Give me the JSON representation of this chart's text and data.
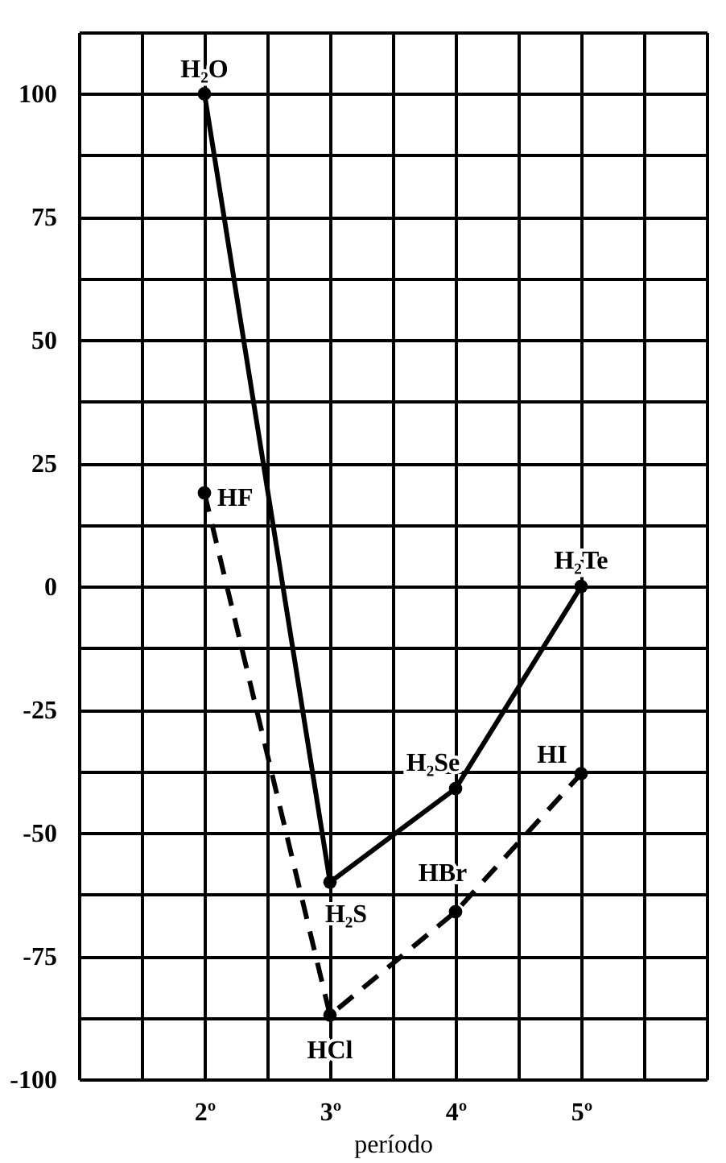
{
  "chart_data": {
    "type": "line",
    "xlabel": "período",
    "x": [
      2,
      3,
      4,
      5
    ],
    "series": [
      {
        "color": "#000000",
        "line_style": "solid",
        "marker": "circle",
        "values": [
          100,
          -60,
          -41,
          0
        ]
      },
      {
        "color": "#000000",
        "line_style": "dashed",
        "marker": "circle",
        "values": [
          19,
          -87,
          -66,
          -38
        ]
      }
    ],
    "xlim": [
      1,
      6
    ],
    "xticks": [
      {
        "value": 1,
        "label": null
      },
      {
        "value": 1.5,
        "label": null
      },
      {
        "value": 2,
        "label": "2º"
      },
      {
        "value": 2.5,
        "label": null
      },
      {
        "value": 3,
        "label": "3º"
      },
      {
        "value": 3.5,
        "label": null
      },
      {
        "value": 4,
        "label": "4º"
      },
      {
        "value": 4.5,
        "label": null
      },
      {
        "value": 5,
        "label": "5º"
      },
      {
        "value": 5.5,
        "label": null
      },
      {
        "value": 6,
        "label": null
      }
    ],
    "ylim": [
      -100,
      112.5
    ],
    "yticks": [
      -100,
      {
        "value": -87.5,
        "label": null
      },
      -75,
      {
        "value": -62.5,
        "label": null
      },
      -50,
      {
        "value": -37.5,
        "label": null
      },
      -25,
      {
        "value": -12.5,
        "label": null
      },
      0,
      {
        "value": 12.5,
        "label": null
      },
      25,
      {
        "value": 37.5,
        "label": null
      },
      50,
      {
        "value": 62.5,
        "label": null
      },
      75,
      {
        "value": 87.5,
        "label": null
      },
      100,
      {
        "value": 112.5,
        "label": null
      }
    ],
    "grid": true,
    "legend": false,
    "annotations": [
      {
        "text": "H₂O",
        "x": 2,
        "y": 100
      },
      {
        "text": "H₂S",
        "x": 3,
        "y": -60
      },
      {
        "text": "H₂Se",
        "x": 4,
        "y": -41
      },
      {
        "text": "H₂Te",
        "x": 5,
        "y": 0
      },
      {
        "text": "HF",
        "x": 2,
        "y": 19
      },
      {
        "text": "HCl",
        "x": 3,
        "y": -87
      },
      {
        "text": "HBr",
        "x": 4,
        "y": -66
      },
      {
        "text": "HI",
        "x": 5,
        "y": -38
      }
    ]
  }
}
